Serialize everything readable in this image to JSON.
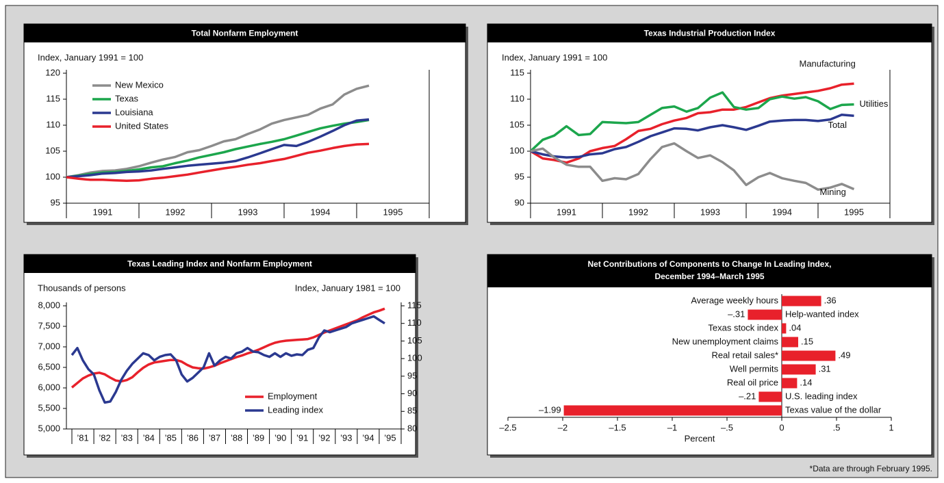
{
  "chart_data": [
    {
      "type": "line",
      "title": "Total Nonfarm Employment",
      "ylabel": "Index, January 1991 = 100",
      "x": [
        1991,
        1991.17,
        1991.33,
        1991.5,
        1991.67,
        1991.83,
        1992,
        1992.17,
        1992.33,
        1992.5,
        1992.67,
        1992.83,
        1993,
        1993.17,
        1993.33,
        1993.5,
        1993.67,
        1993.83,
        1994,
        1994.17,
        1994.33,
        1994.5,
        1994.67,
        1994.83,
        1995,
        1995.17
      ],
      "xlim": [
        1991,
        1996
      ],
      "xticks": [
        {
          "value": 1991.5,
          "label": "1991"
        },
        {
          "value": 1992.5,
          "label": "1992"
        },
        {
          "value": 1993.5,
          "label": "1993"
        },
        {
          "value": 1994.5,
          "label": "1994"
        },
        {
          "value": 1995.5,
          "label": "1995"
        }
      ],
      "ylim": [
        95,
        120
      ],
      "yticks": [
        95,
        100,
        105,
        110,
        115,
        120
      ],
      "legend": "upper left",
      "series": [
        {
          "name": "New Mexico",
          "color": "#8c8c8c",
          "values": [
            100,
            100.4,
            100.9,
            101.2,
            101.3,
            101.6,
            102.1,
            102.8,
            103.4,
            103.9,
            104.8,
            105.2,
            106.0,
            106.9,
            107.3,
            108.3,
            109.2,
            110.3,
            111.0,
            111.5,
            112.0,
            113.2,
            114.0,
            115.9,
            117.0,
            117.6
          ]
        },
        {
          "name": "Texas",
          "color": "#1ca64c",
          "values": [
            100,
            100.3,
            100.6,
            100.9,
            101.0,
            101.2,
            101.5,
            101.9,
            102.1,
            102.7,
            103.2,
            103.8,
            104.3,
            104.8,
            105.4,
            105.9,
            106.4,
            106.8,
            107.3,
            108.0,
            108.7,
            109.4,
            109.9,
            110.3,
            110.6,
            111.0
          ]
        },
        {
          "name": "Louisiana",
          "color": "#2b3990",
          "values": [
            100,
            100.2,
            100.4,
            100.7,
            100.8,
            101.0,
            101.1,
            101.3,
            101.6,
            101.9,
            102.2,
            102.4,
            102.6,
            102.8,
            103.1,
            103.8,
            104.6,
            105.4,
            106.2,
            106.0,
            106.8,
            107.8,
            108.9,
            110.0,
            110.9,
            111.1
          ]
        },
        {
          "name": "United States",
          "color": "#e8212b",
          "values": [
            100,
            99.7,
            99.5,
            99.5,
            99.4,
            99.3,
            99.4,
            99.7,
            99.9,
            100.2,
            100.5,
            100.9,
            101.3,
            101.7,
            102.0,
            102.4,
            102.7,
            103.1,
            103.5,
            104.1,
            104.7,
            105.1,
            105.6,
            106.0,
            106.3,
            106.4
          ]
        }
      ]
    },
    {
      "type": "line",
      "title": "Texas Industrial Production Index",
      "ylabel": "Index, January 1991 = 100",
      "x": [
        1991,
        1991.17,
        1991.33,
        1991.5,
        1991.67,
        1991.83,
        1992,
        1992.17,
        1992.33,
        1992.5,
        1992.67,
        1992.83,
        1993,
        1993.17,
        1993.33,
        1993.5,
        1993.67,
        1993.83,
        1994,
        1994.17,
        1994.33,
        1994.5,
        1994.67,
        1994.83,
        1995,
        1995.17,
        1995.33,
        1995.5
      ],
      "xlim": [
        1991,
        1996
      ],
      "xticks": [
        {
          "value": 1991.5,
          "label": "1991"
        },
        {
          "value": 1992.5,
          "label": "1992"
        },
        {
          "value": 1993.5,
          "label": "1993"
        },
        {
          "value": 1994.5,
          "label": "1994"
        },
        {
          "value": 1995.5,
          "label": "1995"
        }
      ],
      "ylim": [
        90,
        115
      ],
      "yticks": [
        90,
        95,
        100,
        105,
        110,
        115
      ],
      "legend": "line end",
      "series": [
        {
          "name": "Manufacturing",
          "color": "#e8212b",
          "values": [
            100,
            98.6,
            98.3,
            97.8,
            98.6,
            100.0,
            100.6,
            101.0,
            102.3,
            103.9,
            104.3,
            105.2,
            105.9,
            106.4,
            107.3,
            107.5,
            108.0,
            108.0,
            108.5,
            109.4,
            110.2,
            110.7,
            111.0,
            111.3,
            111.6,
            112.1,
            112.8,
            113.0
          ]
        },
        {
          "name": "Utilities",
          "color": "#1ca64c",
          "values": [
            100,
            102.2,
            103.0,
            104.8,
            103.1,
            103.3,
            105.6,
            105.5,
            105.4,
            105.6,
            107.0,
            108.3,
            108.6,
            107.6,
            108.3,
            110.3,
            111.3,
            108.5,
            108.0,
            108.3,
            110.0,
            110.5,
            110.1,
            110.4,
            109.6,
            108.1,
            108.9,
            109.0
          ]
        },
        {
          "name": "Total",
          "color": "#2b3990",
          "values": [
            100,
            99.4,
            99.0,
            98.8,
            98.9,
            99.4,
            99.6,
            100.4,
            100.8,
            101.8,
            102.9,
            103.6,
            104.4,
            104.3,
            104.0,
            104.6,
            105.0,
            104.6,
            104.1,
            104.9,
            105.7,
            105.9,
            106.0,
            106.0,
            105.8,
            106.1,
            107.0,
            106.8
          ]
        },
        {
          "name": "Mining",
          "color": "#8c8c8c",
          "values": [
            100,
            100.5,
            98.8,
            97.4,
            97.0,
            97.0,
            94.3,
            94.8,
            94.6,
            95.6,
            98.5,
            100.8,
            101.5,
            100.0,
            98.7,
            99.2,
            97.9,
            96.3,
            93.5,
            95.0,
            95.8,
            94.8,
            94.3,
            93.9,
            92.6,
            93.0,
            93.7,
            92.7
          ]
        }
      ]
    },
    {
      "type": "line",
      "title": "Texas Leading Index and Nonfarm Employment",
      "ylabel": "Thousands of persons",
      "y2label": "Index, January 1981 = 100",
      "x": [
        1981,
        1981.25,
        1981.5,
        1981.75,
        1982,
        1982.25,
        1982.5,
        1982.75,
        1983,
        1983.25,
        1983.5,
        1983.75,
        1984,
        1984.25,
        1984.5,
        1984.75,
        1985,
        1985.25,
        1985.5,
        1985.75,
        1986,
        1986.25,
        1986.5,
        1986.75,
        1987,
        1987.25,
        1987.5,
        1987.75,
        1988,
        1988.25,
        1988.5,
        1988.75,
        1989,
        1989.25,
        1989.5,
        1989.75,
        1990,
        1990.25,
        1990.5,
        1990.75,
        1991,
        1991.25,
        1991.5,
        1991.75,
        1992,
        1992.25,
        1992.5,
        1992.75,
        1993,
        1993.25,
        1993.5,
        1993.75,
        1994,
        1994.25,
        1994.5,
        1994.75,
        1995,
        1995.25
      ],
      "xlim": [
        1980.75,
        1996
      ],
      "xticks": [
        {
          "value": 1981.5,
          "label": "’81"
        },
        {
          "value": 1982.5,
          "label": "’82"
        },
        {
          "value": 1983.5,
          "label": "’83"
        },
        {
          "value": 1984.5,
          "label": "’84"
        },
        {
          "value": 1985.5,
          "label": "’85"
        },
        {
          "value": 1986.5,
          "label": "’86"
        },
        {
          "value": 1987.5,
          "label": "’87"
        },
        {
          "value": 1988.5,
          "label": "’88"
        },
        {
          "value": 1989.5,
          "label": "’89"
        },
        {
          "value": 1990.5,
          "label": "’90"
        },
        {
          "value": 1991.5,
          "label": "’91"
        },
        {
          "value": 1992.5,
          "label": "’92"
        },
        {
          "value": 1993.5,
          "label": "’93"
        },
        {
          "value": 1994.5,
          "label": "’94"
        },
        {
          "value": 1995.5,
          "label": "’95"
        }
      ],
      "ylim": [
        5000,
        8000
      ],
      "yticks": [
        {
          "value": 5000,
          "label": "5,000"
        },
        {
          "value": 5500,
          "label": "5,500"
        },
        {
          "value": 6000,
          "label": "6,000"
        },
        {
          "value": 6500,
          "label": "6,500"
        },
        {
          "value": 7000,
          "label": "7,000"
        },
        {
          "value": 7500,
          "label": "7,500"
        },
        {
          "value": 8000,
          "label": "8,000"
        }
      ],
      "y2lim": [
        80,
        115
      ],
      "y2ticks": [
        80,
        85,
        90,
        95,
        100,
        105,
        110,
        115
      ],
      "legend": "lower right",
      "series": [
        {
          "name": "Employment",
          "color": "#e8212b",
          "values": [
            6010,
            6120,
            6230,
            6300,
            6350,
            6370,
            6330,
            6250,
            6180,
            6160,
            6190,
            6260,
            6380,
            6490,
            6570,
            6620,
            6640,
            6660,
            6680,
            6680,
            6640,
            6560,
            6500,
            6480,
            6470,
            6500,
            6540,
            6600,
            6650,
            6700,
            6750,
            6790,
            6840,
            6880,
            6930,
            6990,
            7050,
            7100,
            7130,
            7150,
            7160,
            7170,
            7180,
            7190,
            7230,
            7290,
            7350,
            7400,
            7450,
            7500,
            7550,
            7600,
            7650,
            7720,
            7780,
            7840,
            7880,
            7930
          ]
        },
        {
          "name": "Leading index",
          "color": "#2b3990",
          "axis": "y2",
          "values": [
            101.0,
            103.0,
            99.5,
            97.0,
            95.5,
            91.0,
            87.5,
            87.8,
            90.5,
            94.0,
            96.5,
            98.5,
            100.0,
            101.5,
            101.0,
            99.5,
            100.5,
            101.0,
            101.2,
            99.5,
            95.5,
            93.5,
            94.5,
            96.0,
            97.5,
            101.5,
            98.0,
            99.5,
            100.5,
            100.0,
            101.5,
            102.0,
            103.0,
            102.0,
            101.8,
            101.0,
            100.5,
            101.5,
            100.5,
            101.5,
            100.8,
            101.2,
            101.0,
            102.5,
            103.0,
            106.0,
            108.0,
            107.5,
            108.0,
            108.5,
            109.0,
            110.0,
            110.5,
            111.0,
            111.5,
            112.0,
            111.0,
            110.0
          ]
        }
      ]
    },
    {
      "type": "barh",
      "title": "Net Contributions of Components to Change In Leading Index,",
      "subtitle": "December 1994–March 1995",
      "categories": [
        "Average weekly hours",
        "Help-wanted index",
        "Texas stock index",
        "New unemployment claims",
        "Real retail sales*",
        "Well permits",
        "Real oil price",
        "U.S. leading index",
        "Texas value of the dollar"
      ],
      "values": [
        0.36,
        -0.31,
        0.04,
        0.15,
        0.49,
        0.31,
        0.14,
        -0.21,
        -1.99
      ],
      "value_labels": [
        ".36",
        "–.31",
        ".04",
        ".15",
        ".49",
        ".31",
        ".14",
        "–.21",
        "–1.99"
      ],
      "color": "#e8212b",
      "xlabel": "Percent",
      "xlim": [
        -2.5,
        1
      ],
      "xticks": [
        {
          "value": -2.5,
          "label": "–2.5"
        },
        {
          "value": -2,
          "label": "–2"
        },
        {
          "value": -1.5,
          "label": "–1.5"
        },
        {
          "value": -1,
          "label": "–1"
        },
        {
          "value": -0.5,
          "label": "–.5"
        },
        0,
        {
          "value": 0.5,
          "label": ".5"
        },
        1
      ]
    }
  ],
  "footnote": "*Data are through February 1995."
}
